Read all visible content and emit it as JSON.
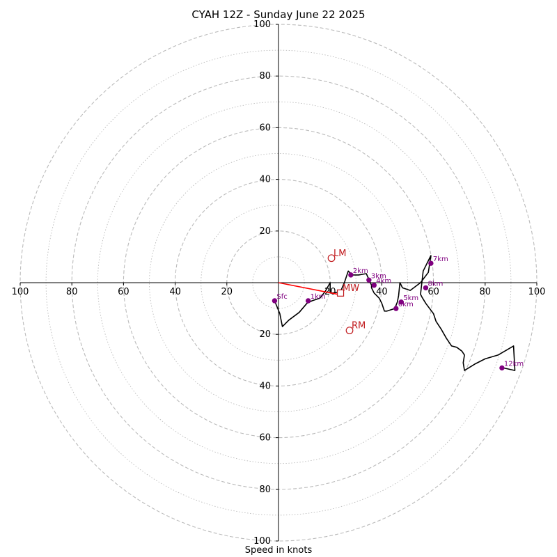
{
  "title": "CYAH 12Z - Sunday June 22 2025",
  "xlabel": "Speed in knots",
  "colors": {
    "hodograph": "#000000",
    "markers": "#800080",
    "storm_motion": "#c0181b",
    "mean_wind_vector": "#ff0000",
    "rings": "#bbbbbb"
  },
  "chart_data": {
    "type": "line",
    "title": "CYAH 12Z - Sunday June 22 2025",
    "xlabel": "Speed in knots",
    "ylabel": "",
    "xlim": [
      -100,
      100
    ],
    "ylim": [
      -100,
      100
    ],
    "ring_major_step": 20,
    "ring_minor_step": 10,
    "tick_labels": [
      "100",
      "80",
      "60",
      "40",
      "20",
      "20",
      "40",
      "60",
      "80",
      "100"
    ],
    "grid": true,
    "hodograph": {
      "u": [
        -1.5,
        0.5,
        1.5,
        4,
        8,
        11,
        13,
        16,
        18,
        20,
        20,
        21,
        24,
        25.5,
        27,
        28,
        29,
        31,
        34,
        36,
        36,
        37,
        39,
        40,
        41,
        42,
        45,
        46,
        46.5,
        47,
        48,
        51,
        55,
        58,
        59,
        56,
        55,
        55.5,
        57,
        60,
        61,
        63,
        65,
        67,
        69,
        71,
        72,
        71.5,
        72,
        76,
        80,
        85,
        91,
        91.5,
        87
      ],
      "v": [
        -7,
        -12,
        -17,
        -14.5,
        -11.5,
        -8,
        -7,
        -6,
        -3.5,
        0,
        -4,
        -4,
        -3.5,
        0,
        4.5,
        3.5,
        3,
        3,
        3.5,
        -1,
        -2,
        -4,
        -6,
        -8,
        -11,
        -11,
        -10,
        -7.5,
        -5,
        0,
        -2,
        -3,
        0,
        4,
        10.5,
        4.5,
        -4.5,
        -5.5,
        -8,
        -12,
        -15,
        -18,
        -21.5,
        -24.5,
        -25,
        -26.5,
        -28,
        -31,
        -34,
        -31.5,
        -29.5,
        -28,
        -24.5,
        -34,
        -33
      ]
    },
    "height_markers": [
      {
        "label": "Sfc",
        "u": -1.5,
        "v": -7
      },
      {
        "label": "1km",
        "u": 11.5,
        "v": -7
      },
      {
        "label": "2km",
        "u": 28,
        "v": 3
      },
      {
        "label": "3km",
        "u": 35,
        "v": 1
      },
      {
        "label": "4km",
        "u": 37,
        "v": -1
      },
      {
        "label": "5km",
        "u": 47.5,
        "v": -7.5
      },
      {
        "label": "6km",
        "u": 45.5,
        "v": -10
      },
      {
        "label": "7km",
        "u": 59,
        "v": 7.5
      },
      {
        "label": "8km",
        "u": 57,
        "v": -2
      },
      {
        "label": "12km",
        "u": 86.5,
        "v": -33
      }
    ],
    "storm_motion": [
      {
        "label": "LM",
        "u": 20.5,
        "v": 9.5,
        "marker": "circle"
      },
      {
        "label": "MW",
        "u": 24,
        "v": -4,
        "marker": "square"
      },
      {
        "label": "RM",
        "u": 27.5,
        "v": -18.5,
        "marker": "circle"
      }
    ],
    "mean_wind_vector": {
      "from": [
        0,
        0
      ],
      "to": [
        23,
        -4.5
      ]
    }
  }
}
